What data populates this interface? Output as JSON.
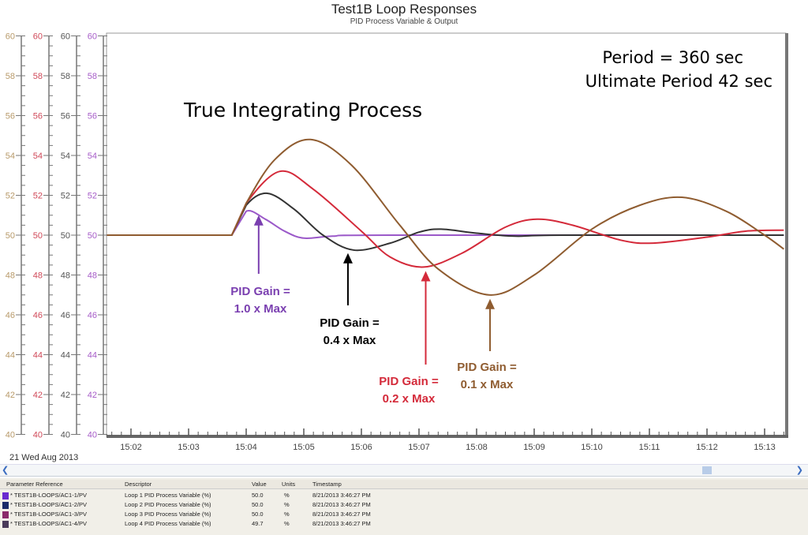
{
  "chart_data": {
    "type": "line",
    "title": "Test1B Loop Responses",
    "subtitle": "PID Process Variable & Output",
    "xlim": [
      "15:01:35",
      "15:13:20"
    ],
    "x_ticks": [
      "15:02",
      "15:03",
      "15:04",
      "15:05",
      "15:06",
      "15:07",
      "15:08",
      "15:09",
      "15:10",
      "15:11",
      "15:12",
      "15:13"
    ],
    "date_label": "21 Wed Aug 2013",
    "ylim": [
      40,
      60
    ],
    "y_ticks": [
      40,
      42,
      44,
      46,
      48,
      50,
      52,
      54,
      56,
      58,
      60
    ],
    "y_axes_colors": [
      "#b89a6a",
      "#d04858",
      "#555555",
      "#a65cc8"
    ],
    "grid": false,
    "series": [
      {
        "color": "#9b59c9",
        "points": [
          [
            "15:01:35",
            50
          ],
          [
            "15:03:45",
            50
          ],
          [
            "15:04:00",
            51.2
          ],
          [
            "15:04:20",
            50.8
          ],
          [
            "15:04:40",
            50.2
          ],
          [
            "15:05:00",
            49.85
          ],
          [
            "15:05:30",
            49.95
          ],
          [
            "15:06:30",
            50
          ],
          [
            "15:13:20",
            50
          ]
        ]
      },
      {
        "color": "#333333",
        "points": [
          [
            "15:01:35",
            50
          ],
          [
            "15:03:45",
            50
          ],
          [
            "15:04:00",
            51.5
          ],
          [
            "15:04:22",
            52.1
          ],
          [
            "15:04:50",
            51.3
          ],
          [
            "15:05:20",
            50
          ],
          [
            "15:05:52",
            49.25
          ],
          [
            "15:06:30",
            49.6
          ],
          [
            "15:07:00",
            50.15
          ],
          [
            "15:07:23",
            50.3
          ],
          [
            "15:08:00",
            50.1
          ],
          [
            "15:08:40",
            49.95
          ],
          [
            "15:09:30",
            50
          ],
          [
            "15:13:20",
            50
          ]
        ]
      },
      {
        "color": "#d42a3a",
        "points": [
          [
            "15:01:35",
            50
          ],
          [
            "15:03:45",
            50
          ],
          [
            "15:04:00",
            51.6
          ],
          [
            "15:04:35",
            53.2
          ],
          [
            "15:05:10",
            52.3
          ],
          [
            "15:06:00",
            50.2
          ],
          [
            "15:06:30",
            48.9
          ],
          [
            "15:07:05",
            48.4
          ],
          [
            "15:07:45",
            49.1
          ],
          [
            "15:08:30",
            50.4
          ],
          [
            "15:09:03",
            50.8
          ],
          [
            "15:09:40",
            50.5
          ],
          [
            "15:10:30",
            49.75
          ],
          [
            "15:11:04",
            49.6
          ],
          [
            "15:12:00",
            49.9
          ],
          [
            "15:12:40",
            50.2
          ],
          [
            "15:13:20",
            50.25
          ]
        ]
      },
      {
        "color": "#8f5c30",
        "points": [
          [
            "15:01:35",
            50
          ],
          [
            "15:03:45",
            50
          ],
          [
            "15:04:00",
            51.6
          ],
          [
            "15:04:30",
            53.8
          ],
          [
            "15:05:07",
            54.8
          ],
          [
            "15:05:50",
            53.5
          ],
          [
            "15:06:40",
            50.5
          ],
          [
            "15:07:20",
            48.3
          ],
          [
            "15:08:13",
            47.0
          ],
          [
            "15:09:00",
            48.0
          ],
          [
            "15:10:00",
            50.3
          ],
          [
            "15:10:50",
            51.5
          ],
          [
            "15:11:34",
            51.9
          ],
          [
            "15:12:20",
            51.2
          ],
          [
            "15:13:00",
            50.0
          ],
          [
            "15:13:20",
            49.3
          ]
        ]
      }
    ],
    "annotations": [
      {
        "text": "True Integrating Process",
        "color": "#000000"
      },
      {
        "text": "Period = 360 sec",
        "color": "#000000"
      },
      {
        "text": "Ultimate Period 42 sec",
        "color": "#000000"
      },
      {
        "line1": "PID Gain =",
        "line2": "1.0 x Max",
        "color": "#7a3fb0",
        "arrow_to": [
          "15:04:13",
          51.0
        ]
      },
      {
        "line1": "PID Gain =",
        "line2": "0.4 x Max",
        "color": "#000000",
        "arrow_to": [
          "15:05:46",
          49.1
        ]
      },
      {
        "line1": "PID Gain =",
        "line2": "0.2 x Max",
        "color": "#d42a3a",
        "arrow_to": [
          "15:07:07",
          48.2
        ]
      },
      {
        "line1": "PID Gain =",
        "line2": "0.1 x Max",
        "color": "#8f5c30",
        "arrow_to": [
          "15:08:14",
          46.8
        ]
      }
    ]
  },
  "table": {
    "headers": [
      "Parameter Reference",
      "Descriptor",
      "Value",
      "Units",
      "Timestamp"
    ],
    "rows": [
      {
        "color": "#6a2ad0",
        "ref": "* TEST1B-LOOPS/AC1-1/PV",
        "desc": "Loop 1 PID Process Variable (%)",
        "value": "50.0",
        "units": "%",
        "ts": "8/21/2013 3:46:27 PM"
      },
      {
        "color": "#1a2a6a",
        "ref": "* TEST1B-LOOPS/AC1-2/PV",
        "desc": "Loop 2 PID Process Variable (%)",
        "value": "50.0",
        "units": "%",
        "ts": "8/21/2013 3:46:27 PM"
      },
      {
        "color": "#8a2a6a",
        "ref": "* TEST1B-LOOPS/AC1-3/PV",
        "desc": "Loop 3 PID Process Variable (%)",
        "value": "50.0",
        "units": "%",
        "ts": "8/21/2013 3:46:27 PM"
      },
      {
        "color": "#4a3a5a",
        "ref": "* TEST1B-LOOPS/AC1-4/PV",
        "desc": "Loop 4 PID Process Variable (%)",
        "value": "49.7",
        "units": "%",
        "ts": "8/21/2013 3:46:27 PM"
      }
    ]
  }
}
